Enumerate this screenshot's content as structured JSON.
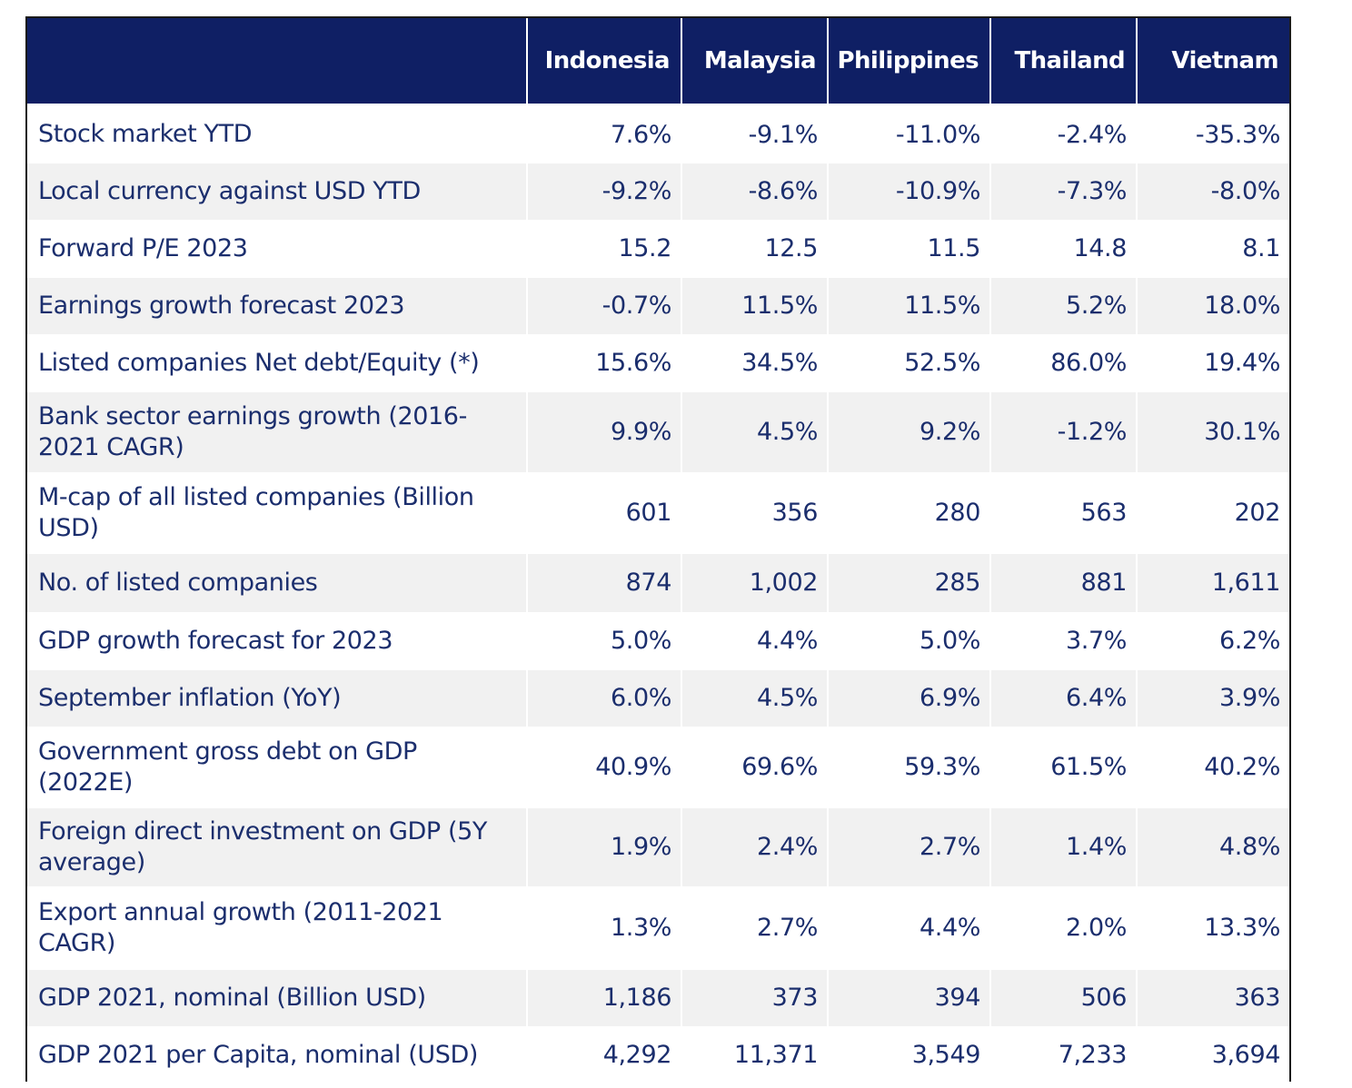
{
  "chart_data": {
    "type": "table",
    "columns": [
      "",
      "Indonesia",
      "Malaysia",
      "Philippines",
      "Thailand",
      "Vietnam"
    ],
    "rows": [
      {
        "label": "Stock market YTD",
        "values": [
          "7.6%",
          "-9.1%",
          "-11.0%",
          "-2.4%",
          "-35.3%"
        ]
      },
      {
        "label": "Local currency against USD YTD",
        "values": [
          "-9.2%",
          "-8.6%",
          "-10.9%",
          "-7.3%",
          "-8.0%"
        ]
      },
      {
        "label": "Forward P/E 2023",
        "values": [
          "15.2",
          "12.5",
          "11.5",
          "14.8",
          "8.1"
        ]
      },
      {
        "label": "Earnings growth forecast 2023",
        "values": [
          "-0.7%",
          "11.5%",
          "11.5%",
          "5.2%",
          "18.0%"
        ]
      },
      {
        "label": "Listed companies Net debt/Equity (*)",
        "values": [
          "15.6%",
          "34.5%",
          "52.5%",
          "86.0%",
          "19.4%"
        ]
      },
      {
        "label": "Bank sector earnings growth (2016-2021 CAGR)",
        "values": [
          "9.9%",
          "4.5%",
          "9.2%",
          "-1.2%",
          "30.1%"
        ]
      },
      {
        "label": "M-cap of all listed companies (Billion USD)",
        "values": [
          "601",
          "356",
          "280",
          "563",
          "202"
        ]
      },
      {
        "label": "No. of listed companies",
        "values": [
          "874",
          "1,002",
          "285",
          "881",
          "1,611"
        ]
      },
      {
        "label": "GDP growth forecast for 2023",
        "values": [
          "5.0%",
          "4.4%",
          "5.0%",
          "3.7%",
          "6.2%"
        ]
      },
      {
        "label": "September inflation (YoY)",
        "values": [
          "6.0%",
          "4.5%",
          "6.9%",
          "6.4%",
          "3.9%"
        ]
      },
      {
        "label": "Government gross debt on GDP (2022E)",
        "values": [
          "40.9%",
          "69.6%",
          "59.3%",
          "61.5%",
          "40.2%"
        ]
      },
      {
        "label": "Foreign direct investment on GDP (5Y average)",
        "values": [
          "1.9%",
          "2.4%",
          "2.7%",
          "1.4%",
          "4.8%"
        ]
      },
      {
        "label": "Export annual growth (2011-2021 CAGR)",
        "values": [
          "1.3%",
          "2.7%",
          "4.4%",
          "2.0%",
          "13.3%"
        ]
      },
      {
        "label": "GDP 2021, nominal (Billion USD)",
        "values": [
          "1,186",
          "373",
          "394",
          "506",
          "363"
        ]
      },
      {
        "label": "GDP 2021 per Capita, nominal (USD)",
        "values": [
          "4,292",
          "11,371",
          "3,549",
          "7,233",
          "3,694"
        ]
      }
    ]
  },
  "colors": {
    "header_background": "#0f1f64",
    "header_text": "#ffffff",
    "body_text": "#1b2e6d",
    "stripe_background": "#f1f1f1"
  }
}
